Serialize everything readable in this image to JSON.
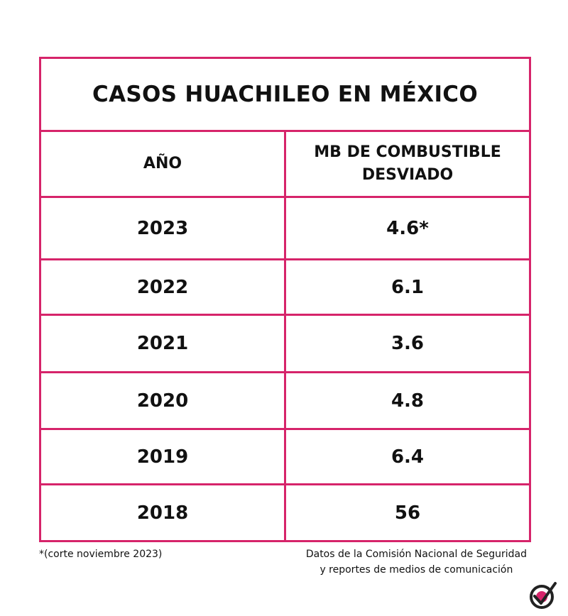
{
  "header": {
    "title": "CASOS HUACHILEO EN MÉXICO"
  },
  "table": {
    "columns": [
      "AÑO",
      "MB DE COMBUSTIBLE DESVIADO"
    ],
    "rows": [
      [
        "2023",
        "4.6*"
      ],
      [
        "2022",
        "6.1"
      ],
      [
        "2021",
        "3.6"
      ],
      [
        "2020",
        "4.8"
      ],
      [
        "2019",
        "6.4"
      ],
      [
        "2018",
        "56"
      ]
    ]
  },
  "footnote": "*(corte noviembre 2023)",
  "source": {
    "lines": [
      "Datos de la Comisión Nacional de Seguridad",
      "y reportes de medios de comunicación"
    ]
  }
}
